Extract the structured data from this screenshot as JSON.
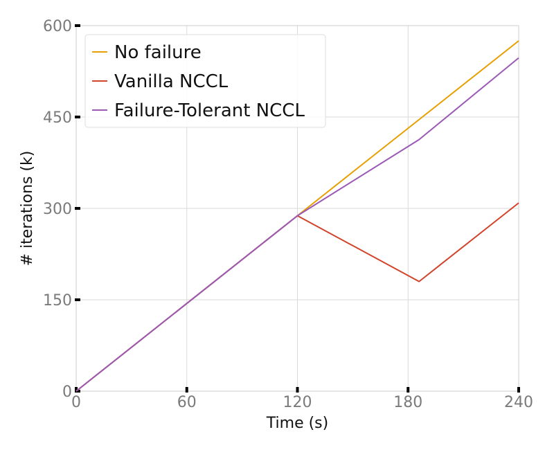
{
  "chart_data": {
    "type": "line",
    "title": "",
    "xlabel": "Time (s)",
    "ylabel": "# iterations (k)",
    "xlim": [
      0,
      240
    ],
    "ylim": [
      0,
      600
    ],
    "xticks": [
      0,
      60,
      120,
      180,
      240
    ],
    "yticks": [
      0,
      150,
      300,
      450,
      600
    ],
    "grid": true,
    "legend": "top-left",
    "series": [
      {
        "name": "No failure",
        "color": "#E69F00",
        "x": [
          0,
          120,
          240
        ],
        "y": [
          0,
          288,
          575
        ]
      },
      {
        "name": "Vanilla NCCL",
        "color": "#D1432B",
        "x": [
          0,
          120,
          186,
          240
        ],
        "y": [
          0,
          288,
          180,
          309
        ]
      },
      {
        "name": "Failure-Tolerant NCCL",
        "color": "#9B59B6",
        "x": [
          0,
          120,
          186,
          240
        ],
        "y": [
          0,
          288,
          413,
          547
        ]
      }
    ]
  }
}
